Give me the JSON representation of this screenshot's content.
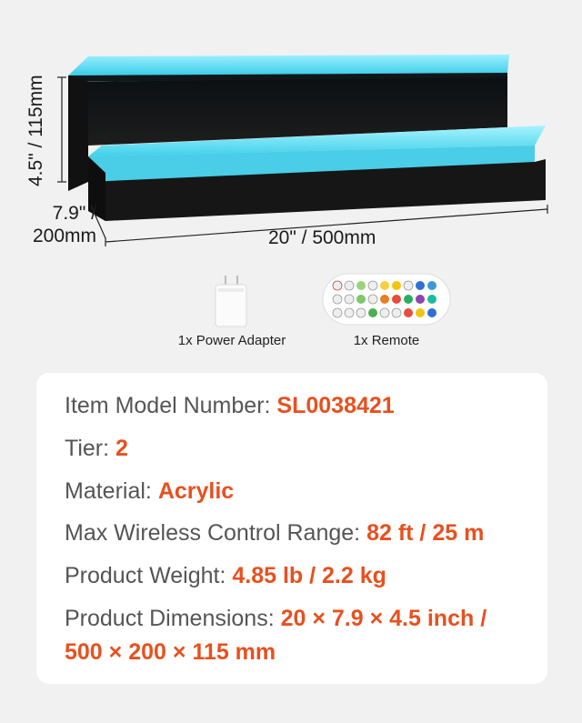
{
  "dimensions": {
    "height": "4.5\" / 115mm",
    "depth_line1": "7.9\" /",
    "depth_line2": "200mm",
    "width": "20\" / 500mm"
  },
  "accessories": [
    {
      "label": "1x Power Adapter",
      "icon": "power-adapter-icon"
    },
    {
      "label": "1x Remote",
      "icon": "remote-control-icon"
    }
  ],
  "specs": {
    "model": {
      "label": "Item Model Number:",
      "value": "SL0038421"
    },
    "tier": {
      "label": "Tier:",
      "value": "2"
    },
    "material": {
      "label": "Material:",
      "value": "Acrylic"
    },
    "range": {
      "label": "Max Wireless Control Range:",
      "value": "82 ft / 25 m"
    },
    "weight": {
      "label": "Product Weight:",
      "value": "4.85 lb / 2.2 kg"
    },
    "dimensions": {
      "label": "Product Dimensions:",
      "value_line1": "20 × 7.9 × 4.5 inch /",
      "value_line2": "500 × 200 × 115 mm"
    }
  },
  "colors": {
    "accent": "#e8501e",
    "label_text": "#555555",
    "led_glow": "#5fd9f0",
    "shelf_body": "#1a1a1a"
  }
}
